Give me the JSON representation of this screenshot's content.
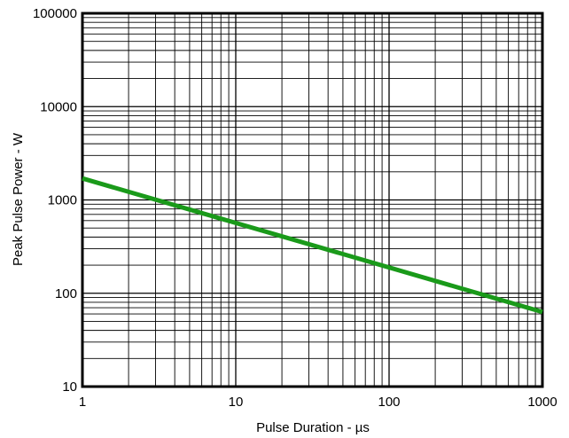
{
  "chart_data": {
    "type": "line",
    "title": "",
    "xlabel": "Pulse Duration - µs",
    "ylabel": "Peak Pulse Power - W",
    "xscale": "log",
    "yscale": "log",
    "xlim": [
      1,
      1000
    ],
    "ylim": [
      10,
      100000
    ],
    "x_ticks": [
      "1",
      "10",
      "100",
      "1000"
    ],
    "y_ticks": [
      "10",
      "100",
      "1000",
      "10000",
      "100000"
    ],
    "grid": true,
    "legend": "none",
    "series": [
      {
        "color": "#1a9a1a",
        "x": [
          1,
          1000
        ],
        "y": [
          1700,
          63
        ]
      }
    ]
  }
}
